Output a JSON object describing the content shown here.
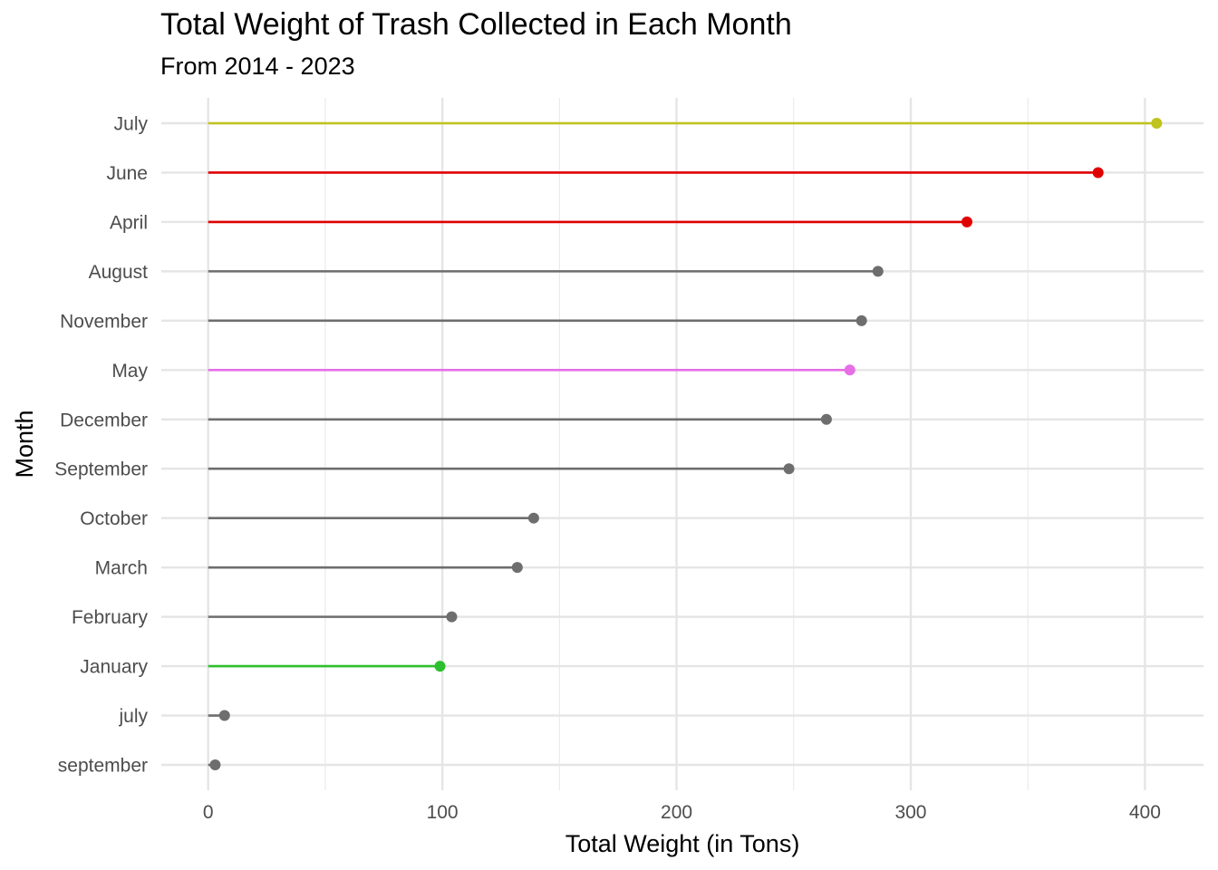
{
  "chart_data": {
    "type": "lollipop",
    "title": "Total Weight of Trash Collected in Each Month",
    "subtitle": "From 2014 - 2023",
    "xlabel": "Total Weight (in Tons)",
    "ylabel": "Month",
    "xlim": [
      -20,
      425
    ],
    "x_ticks": [
      0,
      100,
      200,
      300,
      400
    ],
    "x_minor_ticks": [
      50,
      150,
      250,
      350
    ],
    "grid": true,
    "legend": "none",
    "categories": [
      "July",
      "June",
      "April",
      "August",
      "November",
      "May",
      "December",
      "September",
      "October",
      "March",
      "February",
      "January",
      "july",
      "september"
    ],
    "values": [
      405,
      380,
      324,
      286,
      279,
      274,
      264,
      248,
      139,
      132,
      104,
      99,
      7,
      3
    ],
    "colors": [
      "#C0C31B",
      "#E00000",
      "#E00000",
      "#6E6E6E",
      "#6E6E6E",
      "#E66FE8",
      "#6E6E6E",
      "#6E6E6E",
      "#6E6E6E",
      "#6E6E6E",
      "#6E6E6E",
      "#2DBF2D",
      "#6E6E6E",
      "#6E6E6E"
    ]
  }
}
